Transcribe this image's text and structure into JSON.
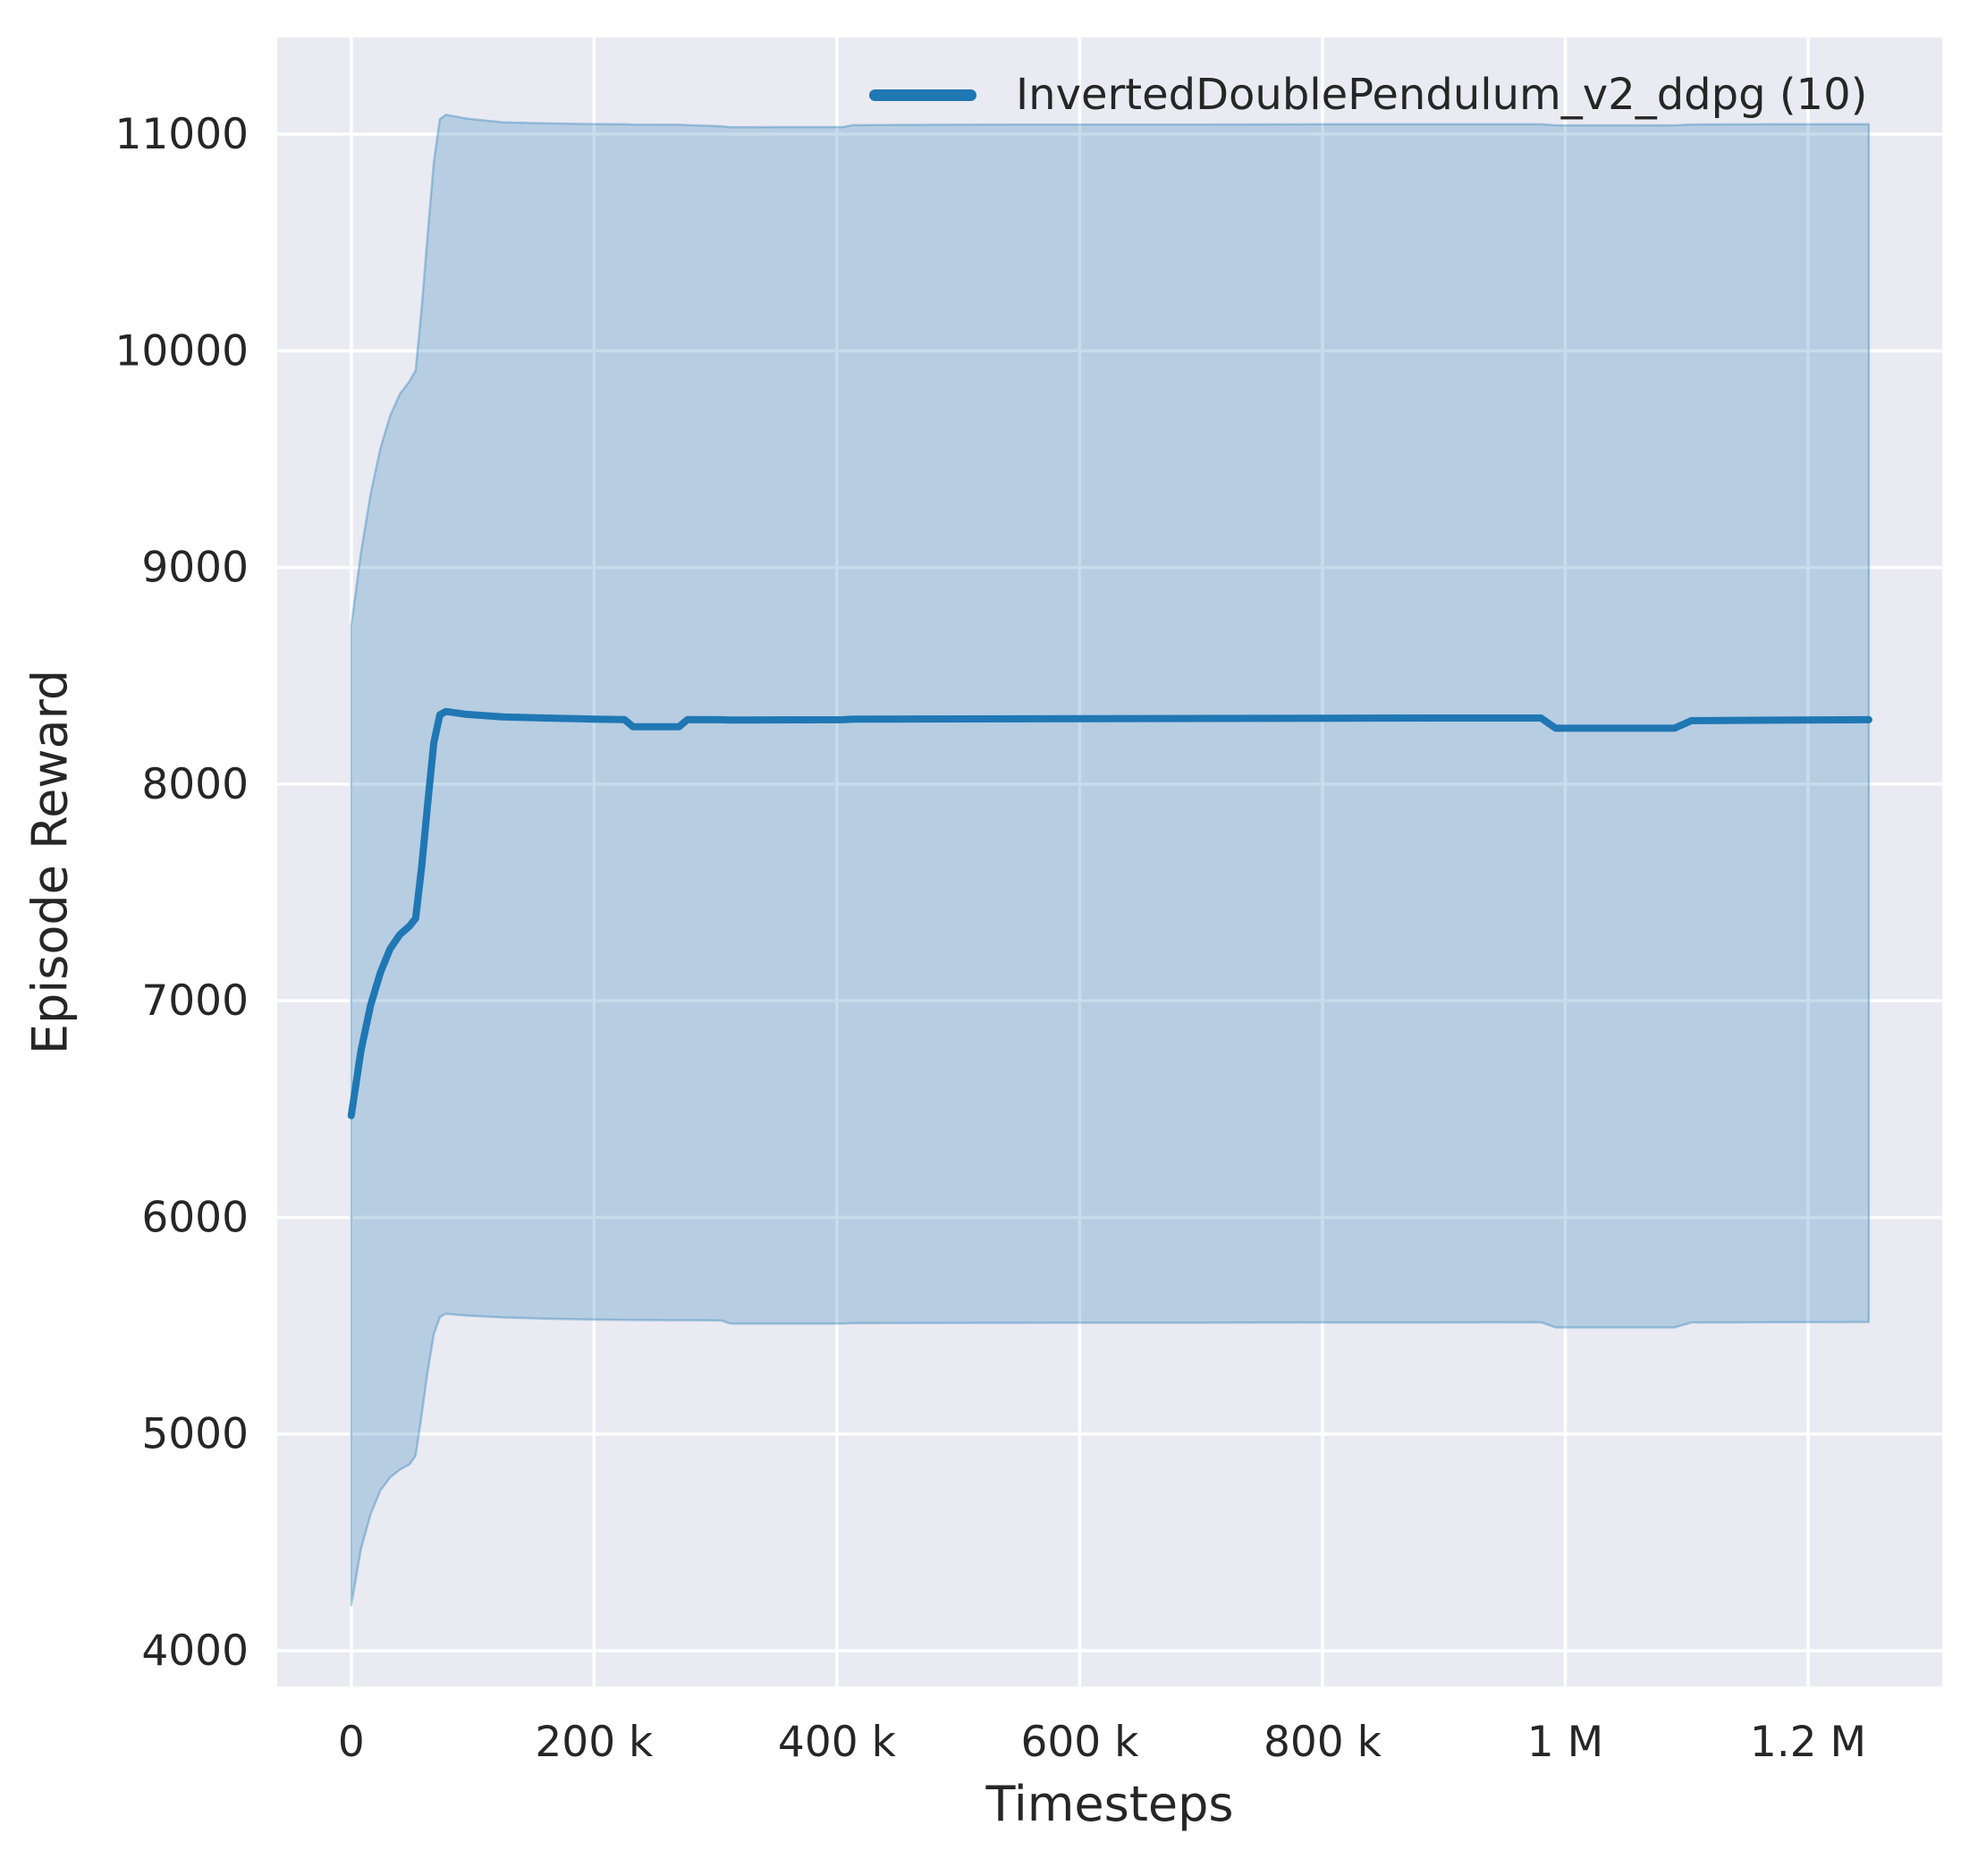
{
  "chart_data": {
    "type": "line",
    "title": "",
    "xlabel": "Timesteps",
    "ylabel": "Episode Reward",
    "legend_position": "upper right",
    "grid": true,
    "colors": {
      "figure_bg": "#ffffff",
      "plot_bg": "#eaeaf2",
      "grid": "#ffffff",
      "text": "#262626",
      "accent": "#1f77b4"
    },
    "band_opacity": 0.25,
    "xlim": [
      -61000,
      1310500
    ],
    "ylim": [
      3835,
      11446
    ],
    "xticks": [
      {
        "v": 0,
        "label": "0"
      },
      {
        "v": 200000,
        "label": "200 k"
      },
      {
        "v": 400000,
        "label": "400 k"
      },
      {
        "v": 600000,
        "label": "600 k"
      },
      {
        "v": 800000,
        "label": "800 k"
      },
      {
        "v": 1000000,
        "label": "1 M"
      },
      {
        "v": 1200000,
        "label": "1.2 M"
      }
    ],
    "yticks": [
      {
        "v": 4000,
        "label": "4000"
      },
      {
        "v": 5000,
        "label": "5000"
      },
      {
        "v": 6000,
        "label": "6000"
      },
      {
        "v": 7000,
        "label": "7000"
      },
      {
        "v": 8000,
        "label": "8000"
      },
      {
        "v": 9000,
        "label": "9000"
      },
      {
        "v": 10000,
        "label": "10000"
      },
      {
        "v": 11000,
        "label": "11000"
      }
    ],
    "series": [
      {
        "name": "InvertedDoublePendulum_v2_ddpg (10)",
        "color": "#1f77b4",
        "points_format": [
          "timestep",
          "mean_reward",
          "band_lower",
          "band_upper"
        ],
        "points": [
          [
            0,
            6470,
            4210,
            8730
          ],
          [
            8000,
            6770,
            4470,
            9070
          ],
          [
            16000,
            6980,
            4630,
            9340
          ],
          [
            24000,
            7130,
            4740,
            9550
          ],
          [
            32000,
            7240,
            4800,
            9700
          ],
          [
            40000,
            7305,
            4835,
            9800
          ],
          [
            48000,
            7345,
            4860,
            9860
          ],
          [
            53000,
            7380,
            4900,
            9910
          ],
          [
            58000,
            7620,
            5090,
            10200
          ],
          [
            63000,
            7910,
            5290,
            10540
          ],
          [
            68000,
            8190,
            5460,
            10870
          ],
          [
            73000,
            8320,
            5540,
            11070
          ],
          [
            78000,
            8335,
            5555,
            11090
          ],
          [
            95000,
            8322,
            5547,
            11072
          ],
          [
            125000,
            8310,
            5538,
            11055
          ],
          [
            160000,
            8305,
            5532,
            11050
          ],
          [
            200000,
            8300,
            5528,
            11047
          ],
          [
            225000,
            8298,
            5527,
            11046
          ],
          [
            232000,
            8265,
            5526,
            11045
          ],
          [
            270000,
            8265,
            5525,
            11044
          ],
          [
            277000,
            8298,
            5525,
            11042
          ],
          [
            305000,
            8297,
            5524,
            11037
          ],
          [
            312000,
            8296,
            5510,
            11032
          ],
          [
            405000,
            8297,
            5510,
            11033
          ],
          [
            413000,
            8300,
            5512,
            11042
          ],
          [
            500000,
            8301,
            5513,
            11044
          ],
          [
            600000,
            8302,
            5514,
            11045
          ],
          [
            700000,
            8303,
            5514,
            11045
          ],
          [
            800000,
            8304,
            5515,
            11046
          ],
          [
            900000,
            8305,
            5515,
            11046
          ],
          [
            980000,
            8305,
            5516,
            11046
          ],
          [
            992000,
            8258,
            5492,
            11041
          ],
          [
            1090000,
            8258,
            5492,
            11041
          ],
          [
            1104000,
            8293,
            5515,
            11045
          ],
          [
            1170000,
            8295,
            5516,
            11046
          ],
          [
            1250000,
            8297,
            5517,
            11046
          ]
        ]
      }
    ]
  }
}
